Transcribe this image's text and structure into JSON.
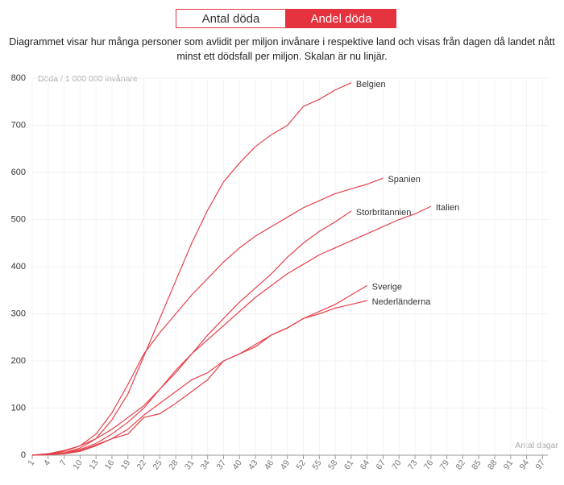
{
  "tabs": [
    "Antal döda",
    "Andel döda"
  ],
  "subtitle_lines": [
    "Diagrammet visar hur många personer som avlidit per miljon invånare i respektive land och visas från dagen då landet nått",
    "minst ett dödsfall per miljon. Skalan är nu linjär."
  ],
  "chart_data": {
    "type": "line",
    "y_label": "Döda / 1 000 000 invånare",
    "x_label": "Antal dagar",
    "x": [
      1,
      4,
      7,
      10,
      13,
      16,
      19,
      22,
      25,
      28,
      31,
      34,
      37,
      40,
      43,
      46,
      49,
      52,
      55,
      58,
      61,
      64,
      67,
      70,
      73,
      76
    ],
    "xlim": [
      1,
      98
    ],
    "xticks": [
      1,
      4,
      7,
      10,
      13,
      16,
      19,
      22,
      25,
      28,
      31,
      34,
      37,
      40,
      43,
      46,
      49,
      52,
      55,
      58,
      61,
      64,
      67,
      70,
      73,
      76,
      79,
      82,
      85,
      88,
      91,
      94,
      97
    ],
    "ylim": [
      0,
      800
    ],
    "yticks": [
      0,
      100,
      200,
      300,
      400,
      500,
      600,
      700,
      800
    ],
    "grid": true,
    "series": [
      {
        "name": "Belgien",
        "color": "#e5414b",
        "values": [
          0,
          3,
          5,
          15,
          35,
          75,
          130,
          210,
          290,
          370,
          450,
          520,
          580,
          620,
          655,
          680,
          700,
          740,
          755,
          775,
          790,
          null,
          null,
          null,
          null,
          null
        ]
      },
      {
        "name": "Spanien",
        "color": "#e5414b",
        "values": [
          0,
          3,
          8,
          20,
          45,
          90,
          150,
          215,
          260,
          300,
          340,
          375,
          410,
          440,
          465,
          485,
          505,
          525,
          540,
          555,
          565,
          575,
          588,
          null,
          null,
          null
        ]
      },
      {
        "name": "Storbritannien",
        "color": "#e5414b",
        "values": [
          0,
          2,
          5,
          12,
          25,
          45,
          70,
          100,
          140,
          175,
          215,
          255,
          290,
          325,
          355,
          385,
          420,
          450,
          475,
          495,
          518,
          null,
          null,
          null,
          null,
          null
        ]
      },
      {
        "name": "Italien",
        "color": "#e5414b",
        "values": [
          0,
          3,
          10,
          20,
          35,
          55,
          80,
          105,
          140,
          180,
          215,
          245,
          275,
          305,
          335,
          360,
          385,
          405,
          425,
          440,
          455,
          470,
          485,
          500,
          512,
          528
        ]
      },
      {
        "name": "Sverige",
        "color": "#e5414b",
        "values": [
          0,
          1,
          3,
          8,
          20,
          35,
          55,
          85,
          110,
          135,
          160,
          175,
          200,
          215,
          235,
          255,
          270,
          290,
          305,
          320,
          340,
          360,
          null,
          null,
          null,
          null
        ]
      },
      {
        "name": "Nederländerna",
        "color": "#e5414b",
        "values": [
          0,
          2,
          4,
          10,
          22,
          35,
          45,
          80,
          88,
          110,
          135,
          160,
          200,
          215,
          230,
          255,
          270,
          290,
          300,
          312,
          320,
          328,
          null,
          null,
          null,
          null
        ]
      }
    ]
  }
}
